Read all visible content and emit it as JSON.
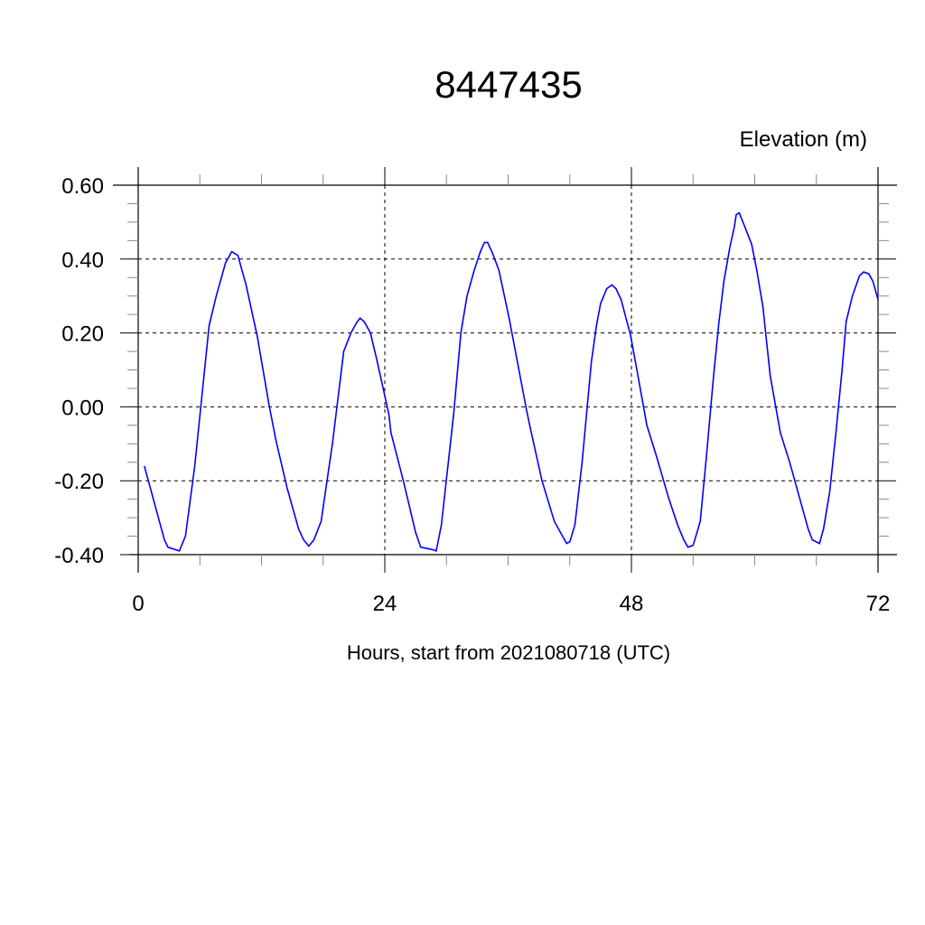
{
  "chart_data": {
    "type": "line",
    "title": "8447435",
    "ylabel": "Elevation (m)",
    "xlabel": "Hours, start from 2021080718 (UTC)",
    "xlim": [
      0,
      72
    ],
    "ylim": [
      -0.4,
      0.6
    ],
    "x_major_ticks": [
      0,
      24,
      48,
      72
    ],
    "x_tick_labels": [
      "0",
      "24",
      "48",
      "72"
    ],
    "x_minor_step": 6,
    "y_major_ticks": [
      0.6,
      0.4,
      0.2,
      0.0,
      -0.2,
      -0.4
    ],
    "y_tick_labels": [
      "0.60",
      "0.40",
      "0.20",
      "0.00",
      "-0.20",
      "-0.40"
    ],
    "y_minor_step": 0.05,
    "grid": "dashed at major ticks",
    "line_color": "#0000ff",
    "series": [
      {
        "x": [
          0.6,
          2.55,
          2.9,
          4.0,
          4.6,
          5.5,
          6.9,
          7.6,
          8.5,
          9.1,
          9.7,
          10.5,
          11.6,
          12.7,
          13.4,
          14.5,
          15.6,
          16.1,
          16.6,
          17.1,
          17.8,
          18.9,
          20.0,
          20.7,
          21.3,
          21.6,
          22.0,
          22.6,
          23.2,
          24.4,
          24.6,
          25.8,
          27.0,
          27.5,
          28.6,
          29.0,
          29.5,
          30.7,
          31.4,
          32.0,
          32.7,
          33.3,
          33.7,
          34.0,
          34.5,
          35.1,
          36.1,
          37.8,
          38.1,
          39.3,
          40.5,
          41.1,
          41.7,
          42.0,
          42.5,
          43.2,
          44.1,
          44.6,
          45.0,
          45.6,
          46.1,
          46.5,
          47.0,
          47.9,
          48.6,
          49.5,
          50.4,
          51.6,
          52.5,
          53.1,
          53.5,
          54.0,
          54.7,
          55.3,
          56.0,
          56.5,
          57.0,
          57.6,
          58.0,
          58.2,
          58.5,
          59.0,
          59.7,
          60.2,
          60.8,
          61.5,
          62.5,
          63.4,
          63.9,
          64.6,
          65.2,
          65.6,
          66.3,
          66.7,
          67.3,
          67.9,
          68.5,
          68.9,
          69.5,
          70.2,
          70.6,
          71.1,
          71.5,
          72.0
        ],
        "y": [
          -0.16,
          -0.36,
          -0.38,
          -0.39,
          -0.35,
          -0.16,
          0.22,
          0.3,
          0.39,
          0.42,
          0.41,
          0.33,
          0.19,
          0.01,
          -0.09,
          -0.22,
          -0.33,
          -0.36,
          -0.377,
          -0.36,
          -0.31,
          -0.1,
          0.15,
          0.2,
          0.23,
          0.24,
          0.23,
          0.2,
          0.13,
          -0.02,
          -0.07,
          -0.2,
          -0.34,
          -0.38,
          -0.386,
          -0.39,
          -0.32,
          -0.02,
          0.2,
          0.3,
          0.37,
          0.42,
          0.445,
          0.445,
          0.415,
          0.37,
          0.24,
          -0.01,
          -0.05,
          -0.2,
          -0.31,
          -0.34,
          -0.37,
          -0.365,
          -0.32,
          -0.15,
          0.12,
          0.22,
          0.28,
          0.32,
          0.33,
          0.32,
          0.29,
          0.195,
          0.09,
          -0.05,
          -0.13,
          -0.245,
          -0.32,
          -0.36,
          -0.38,
          -0.375,
          -0.31,
          -0.135,
          0.085,
          0.225,
          0.34,
          0.435,
          0.485,
          0.52,
          0.525,
          0.49,
          0.44,
          0.37,
          0.27,
          0.085,
          -0.07,
          -0.15,
          -0.2,
          -0.27,
          -0.33,
          -0.36,
          -0.37,
          -0.33,
          -0.23,
          -0.07,
          0.1,
          0.23,
          0.3,
          0.355,
          0.365,
          0.36,
          0.34,
          0.29
        ]
      }
    ]
  }
}
